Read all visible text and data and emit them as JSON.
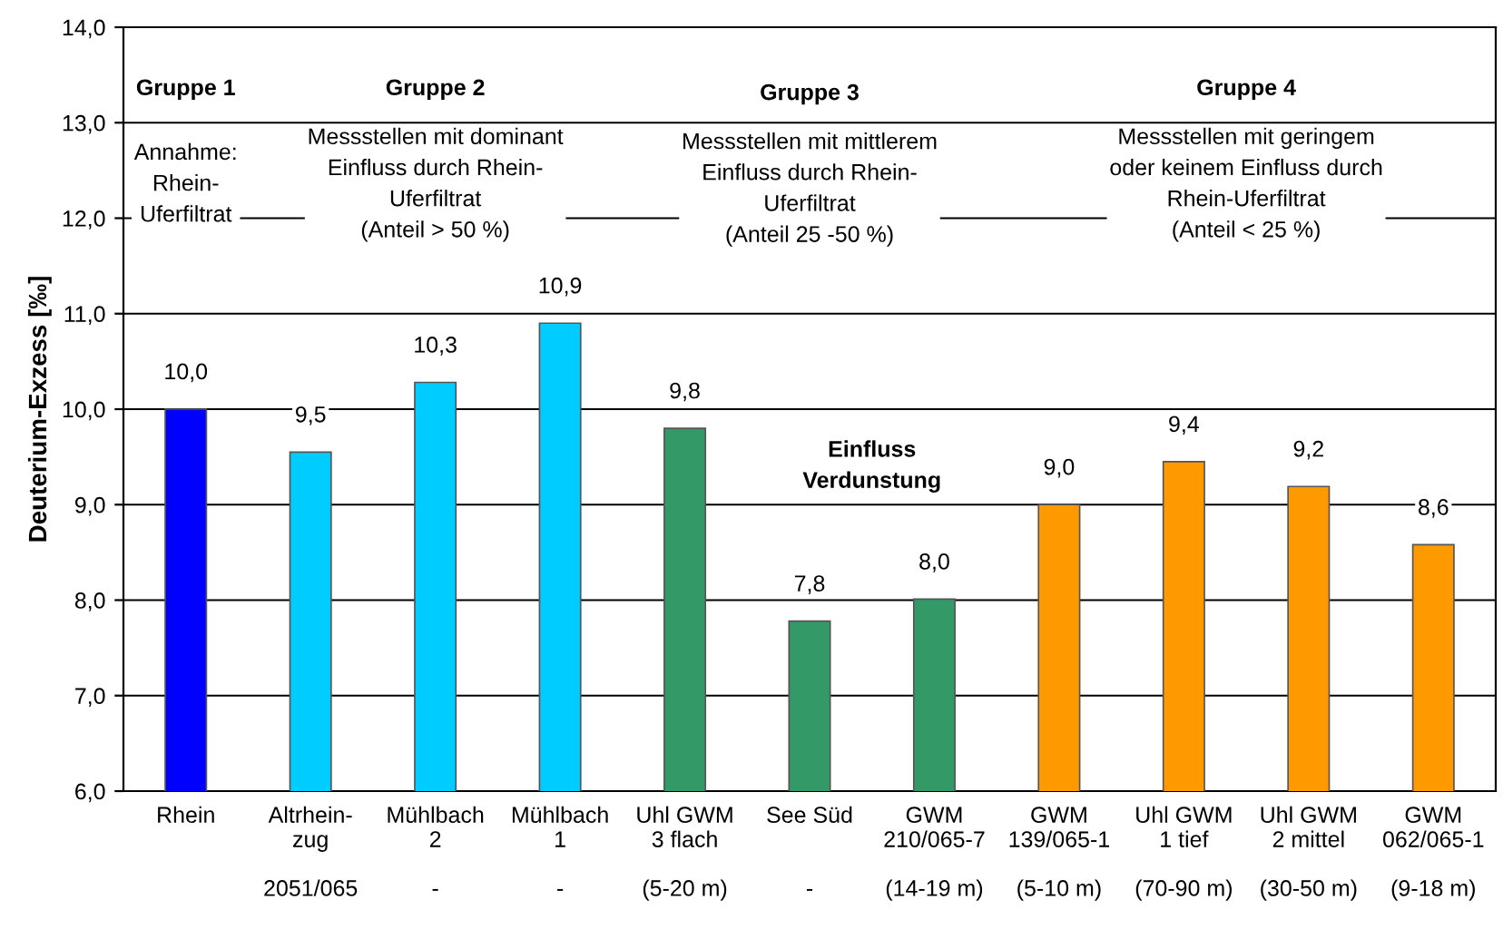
{
  "chart_data": {
    "type": "bar",
    "ylabel": "Deuterium-Exzess [‰]",
    "categories": [
      "Rhein\n\n\n",
      "Altrhein-\nzug\n\n2051/065",
      "Mühlbach\n2\n\n-",
      "Mühlbach\n1\n\n-",
      "Uhl GWM\n3 flach\n\n(5-20 m)",
      "See Süd\n\n\n-",
      "GWM\n210/065-7\n\n(14-19 m)",
      "GWM\n139/065-1\n\n(5-10 m)",
      "Uhl GWM\n1 tief\n\n(70-90 m)",
      "Uhl GWM\n2 mittel\n\n(30-50 m)",
      "GWM\n062/065-1\n\n(9-18 m)"
    ],
    "values": [
      10.0,
      9.55,
      10.28,
      10.9,
      9.8,
      7.78,
      8.01,
      9.0,
      9.45,
      9.19,
      8.58
    ],
    "value_labels": [
      "10,0",
      "9,5",
      "10,3",
      "10,9",
      "9,8",
      "7,8",
      "8,0",
      "9,0",
      "9,4",
      "9,2",
      "8,6"
    ],
    "colors": [
      "#0000ff",
      "#00ccff",
      "#00ccff",
      "#00ccff",
      "#339966",
      "#339966",
      "#339966",
      "#ff9900",
      "#ff9900",
      "#ff9900",
      "#ff9900"
    ],
    "ylim": [
      6,
      14
    ],
    "yticks": [
      {
        "value": 6,
        "label": "6,0"
      },
      {
        "value": 7,
        "label": "7,0"
      },
      {
        "value": 8,
        "label": "8,0"
      },
      {
        "value": 9,
        "label": "9,0"
      },
      {
        "value": 10,
        "label": "10,0"
      },
      {
        "value": 11,
        "label": "11,0"
      },
      {
        "value": 12,
        "label": "12,0"
      },
      {
        "value": 13,
        "label": "13,0"
      },
      {
        "value": 14,
        "label": "14,0"
      }
    ],
    "grid": "y",
    "annotations": [
      "Gruppe 1",
      "Annahme:\nRhein-\nUferfiltrat",
      "Gruppe 2",
      "Messstellen mit dominant\nEinfluss durch Rhein-\nUferfiltrat\n(Anteil > 50 %)",
      "Gruppe 3",
      "Messstellen mit mittlerem\nEinfluss durch Rhein-\nUferfiltrat\n(Anteil 25 -50 %)",
      "Gruppe 4",
      "Messstellen mit geringem\noder keinem Einfluss durch\nRhein-Uferfiltrat\n(Anteil < 25 %)",
      "Einfluss\nVerdunstung"
    ]
  }
}
